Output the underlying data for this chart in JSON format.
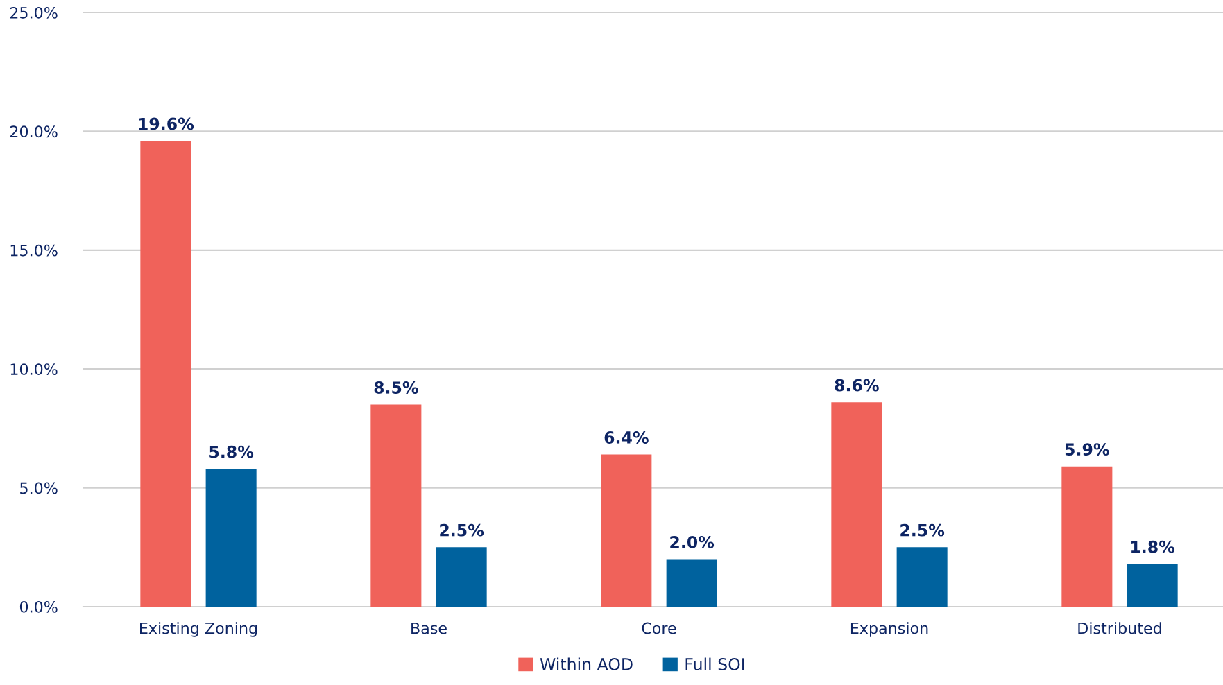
{
  "chart_data": {
    "type": "bar",
    "categories": [
      "Existing Zoning",
      "Base",
      "Core",
      "Expansion",
      "Distributed"
    ],
    "series": [
      {
        "name": "Within AOD",
        "color": "#f0625a",
        "values": [
          19.6,
          8.5,
          6.4,
          8.6,
          5.9
        ],
        "value_labels": [
          "19.6%",
          "8.5%",
          "6.4%",
          "8.6%",
          "5.9%"
        ]
      },
      {
        "name": "Full SOI",
        "color": "#00629e",
        "values": [
          5.8,
          2.5,
          2.0,
          2.5,
          1.8
        ],
        "value_labels": [
          "5.8%",
          "2.5%",
          "2.0%",
          "2.5%",
          "1.8%"
        ]
      }
    ],
    "ylim": [
      0,
      25
    ],
    "yticks": [
      {
        "value": 0,
        "label": "0.0%"
      },
      {
        "value": 5,
        "label": "5.0%"
      },
      {
        "value": 10,
        "label": "10.0%"
      },
      {
        "value": 15,
        "label": "15.0%"
      },
      {
        "value": 20,
        "label": "20.0%"
      },
      {
        "value": 25,
        "label": "25.0%"
      }
    ],
    "grid": "y",
    "legend": "bottom"
  }
}
